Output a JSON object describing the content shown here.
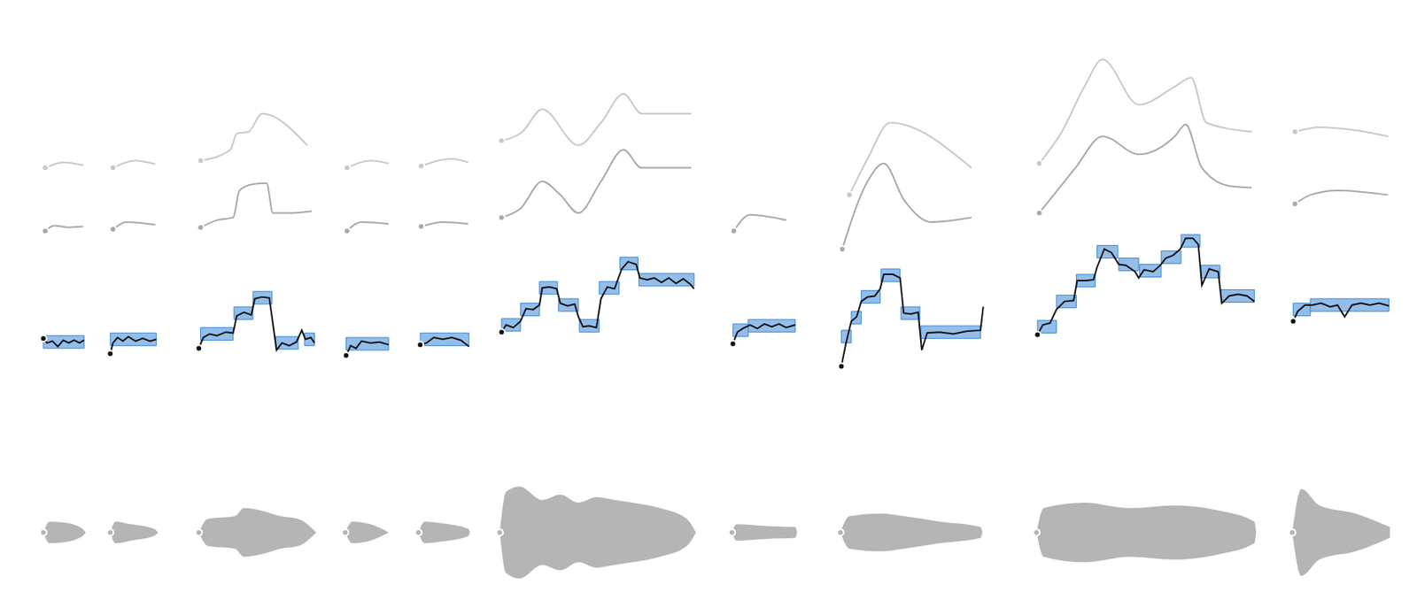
{
  "chart_data": {
    "type": "spectrogram",
    "tick_labels": false,
    "xlim": [
      0,
      1568
    ],
    "ylim": [
      0,
      656
    ],
    "y2lim": [
      -66,
      590
    ],
    "notes": [
      [
        48,
        93,
        277
      ],
      [
        122,
        173,
        280
      ],
      [
        222,
        258,
        286
      ],
      [
        259,
        280,
        309
      ],
      [
        280,
        301,
        326
      ],
      [
        305,
        330,
        276
      ],
      [
        337,
        348,
        280
      ],
      [
        383,
        430,
        275
      ],
      [
        465,
        519,
        280
      ],
      [
        555,
        576,
        296
      ],
      [
        576,
        597,
        313
      ],
      [
        597,
        617,
        337
      ],
      [
        618,
        640,
        318
      ],
      [
        641,
        663,
        295
      ],
      [
        663,
        685,
        337
      ],
      [
        686,
        706,
        364
      ],
      [
        707,
        768,
        346
      ],
      [
        811,
        828,
        290
      ],
      [
        828,
        880,
        295
      ],
      [
        931,
        942,
        283
      ],
      [
        942,
        953,
        304
      ],
      [
        953,
        974,
        327
      ],
      [
        975,
        996,
        351
      ],
      [
        997,
        1018,
        309
      ],
      [
        1019,
        1085,
        288
      ],
      [
        1148,
        1169,
        294
      ],
      [
        1169,
        1191,
        322
      ],
      [
        1191,
        1212,
        345
      ],
      [
        1214,
        1237,
        377
      ],
      [
        1238,
        1260,
        363
      ],
      [
        1261,
        1285,
        356
      ],
      [
        1285,
        1307,
        371
      ],
      [
        1307,
        1328,
        389
      ],
      [
        1329,
        1350,
        355
      ],
      [
        1351,
        1388,
        328
      ],
      [
        1431,
        1450,
        313
      ],
      [
        1450,
        1537,
        318
      ]
    ],
    "pitch_track": [
      [
        [
          48,
          281
        ],
        [
          52,
          276
        ],
        [
          58,
          278
        ],
        [
          64,
          272
        ],
        [
          70,
          279
        ],
        [
          76,
          276
        ],
        [
          82,
          279
        ],
        [
          88,
          276
        ],
        [
          93,
          279
        ]
      ],
      [
        [
          122,
          264
        ],
        [
          125,
          276
        ],
        [
          130,
          282
        ],
        [
          136,
          278
        ],
        [
          142,
          283
        ],
        [
          150,
          278
        ],
        [
          158,
          281
        ],
        [
          166,
          278
        ],
        [
          173,
          280
        ]
      ],
      [
        [
          220,
          270
        ],
        [
          225,
          282
        ],
        [
          232,
          286
        ],
        [
          240,
          284
        ],
        [
          250,
          288
        ],
        [
          258,
          287
        ],
        [
          262,
          306
        ],
        [
          270,
          310
        ],
        [
          278,
          307
        ],
        [
          282,
          325
        ],
        [
          290,
          327
        ],
        [
          298,
          326
        ],
        [
          303,
          290
        ],
        [
          306,
          268
        ],
        [
          312,
          276
        ],
        [
          320,
          273
        ],
        [
          328,
          277
        ],
        [
          334,
          290
        ],
        [
          338,
          280
        ],
        [
          344,
          282
        ],
        [
          348,
          276
        ]
      ],
      [
        [
          383,
          262
        ],
        [
          388,
          273
        ],
        [
          394,
          270
        ],
        [
          400,
          278
        ],
        [
          410,
          276
        ],
        [
          420,
          277
        ],
        [
          430,
          274
        ]
      ],
      [
        [
          465,
          274
        ],
        [
          472,
          276
        ],
        [
          480,
          282
        ],
        [
          490,
          280
        ],
        [
          500,
          282
        ],
        [
          510,
          279
        ],
        [
          519,
          272
        ]
      ],
      [
        [
          555,
          288
        ],
        [
          560,
          296
        ],
        [
          568,
          293
        ],
        [
          576,
          300
        ],
        [
          582,
          314
        ],
        [
          590,
          313
        ],
        [
          597,
          318
        ],
        [
          600,
          337
        ],
        [
          608,
          338
        ],
        [
          616,
          336
        ],
        [
          620,
          320
        ],
        [
          628,
          317
        ],
        [
          636,
          319
        ],
        [
          640,
          305
        ],
        [
          645,
          294
        ],
        [
          652,
          295
        ],
        [
          660,
          293
        ],
        [
          665,
          325
        ],
        [
          672,
          338
        ],
        [
          680,
          336
        ],
        [
          688,
          358
        ],
        [
          695,
          366
        ],
        [
          704,
          363
        ],
        [
          708,
          348
        ],
        [
          716,
          346
        ],
        [
          724,
          348
        ],
        [
          732,
          343
        ],
        [
          740,
          348
        ],
        [
          748,
          342
        ],
        [
          756,
          347
        ],
        [
          764,
          341
        ],
        [
          768,
          336
        ]
      ],
      [
        [
          811,
          275
        ],
        [
          816,
          288
        ],
        [
          822,
          292
        ],
        [
          830,
          296
        ],
        [
          838,
          292
        ],
        [
          846,
          297
        ],
        [
          854,
          294
        ],
        [
          862,
          297
        ],
        [
          870,
          293
        ],
        [
          880,
          296
        ]
      ],
      [
        [
          931,
          250
        ],
        [
          936,
          275
        ],
        [
          942,
          300
        ],
        [
          948,
          305
        ],
        [
          953,
          322
        ],
        [
          960,
          327
        ],
        [
          968,
          328
        ],
        [
          974,
          336
        ],
        [
          978,
          352
        ],
        [
          988,
          352
        ],
        [
          996,
          348
        ],
        [
          1000,
          309
        ],
        [
          1008,
          308
        ],
        [
          1016,
          310
        ],
        [
          1020,
          268
        ],
        [
          1026,
          287
        ],
        [
          1040,
          288
        ],
        [
          1055,
          286
        ],
        [
          1070,
          289
        ],
        [
          1085,
          290
        ],
        [
          1088,
          316
        ]
      ],
      [
        [
          1148,
          285
        ],
        [
          1154,
          296
        ],
        [
          1162,
          298
        ],
        [
          1169,
          313
        ],
        [
          1178,
          322
        ],
        [
          1188,
          323
        ],
        [
          1192,
          345
        ],
        [
          1202,
          345
        ],
        [
          1210,
          346
        ],
        [
          1214,
          360
        ],
        [
          1222,
          380
        ],
        [
          1230,
          376
        ],
        [
          1238,
          363
        ],
        [
          1246,
          362
        ],
        [
          1256,
          355
        ],
        [
          1260,
          348
        ],
        [
          1266,
          357
        ],
        [
          1276,
          355
        ],
        [
          1284,
          362
        ],
        [
          1290,
          370
        ],
        [
          1298,
          373
        ],
        [
          1306,
          380
        ],
        [
          1312,
          392
        ],
        [
          1320,
          392
        ],
        [
          1326,
          385
        ],
        [
          1330,
          340
        ],
        [
          1338,
          358
        ],
        [
          1348,
          355
        ],
        [
          1352,
          320
        ],
        [
          1360,
          328
        ],
        [
          1370,
          330
        ],
        [
          1380,
          328
        ],
        [
          1388,
          322
        ]
      ],
      [
        [
          1431,
          300
        ],
        [
          1436,
          311
        ],
        [
          1444,
          318
        ],
        [
          1452,
          318
        ],
        [
          1462,
          320
        ],
        [
          1472,
          316
        ],
        [
          1480,
          318
        ],
        [
          1488,
          305
        ],
        [
          1496,
          318
        ],
        [
          1506,
          320
        ],
        [
          1516,
          318
        ],
        [
          1526,
          320
        ],
        [
          1537,
          317
        ]
      ]
    ],
    "harmonic_2_track": [
      [
        [
          50,
          400
        ],
        [
          60,
          406
        ],
        [
          75,
          404
        ],
        [
          92,
          405
        ]
      ],
      [
        [
          125,
          402
        ],
        [
          140,
          410
        ],
        [
          172,
          407
        ]
      ],
      [
        [
          222,
          404
        ],
        [
          240,
          412
        ],
        [
          258,
          415
        ],
        [
          265,
          445
        ],
        [
          280,
          452
        ],
        [
          295,
          453
        ],
        [
          302,
          420
        ],
        [
          320,
          420
        ],
        [
          345,
          422
        ]
      ],
      [
        [
          384,
          400
        ],
        [
          400,
          410
        ],
        [
          430,
          408
        ]
      ],
      [
        [
          466,
          405
        ],
        [
          490,
          410
        ],
        [
          518,
          408
        ]
      ],
      [
        [
          555,
          415
        ],
        [
          576,
          425
        ],
        [
          600,
          455
        ],
        [
          620,
          440
        ],
        [
          640,
          420
        ],
        [
          665,
          455
        ],
        [
          690,
          490
        ],
        [
          710,
          470
        ],
        [
          765,
          470
        ]
      ],
      [
        [
          812,
          400
        ],
        [
          830,
          418
        ],
        [
          870,
          412
        ]
      ],
      [
        [
          932,
          380
        ],
        [
          960,
          455
        ],
        [
          978,
          475
        ],
        [
          1000,
          435
        ],
        [
          1030,
          410
        ],
        [
          1075,
          415
        ]
      ],
      [
        [
          1150,
          420
        ],
        [
          1170,
          445
        ],
        [
          1190,
          470
        ],
        [
          1220,
          505
        ],
        [
          1260,
          485
        ],
        [
          1300,
          505
        ],
        [
          1312,
          518
        ],
        [
          1330,
          470
        ],
        [
          1360,
          450
        ],
        [
          1385,
          448
        ]
      ],
      [
        [
          1433,
          430
        ],
        [
          1450,
          440
        ],
        [
          1480,
          445
        ],
        [
          1536,
          440
        ]
      ]
    ],
    "harmonic_3_track": [
      [
        [
          50,
          470
        ],
        [
          70,
          476
        ],
        [
          92,
          473
        ]
      ],
      [
        [
          125,
          470
        ],
        [
          150,
          478
        ],
        [
          172,
          474
        ]
      ],
      [
        [
          222,
          478
        ],
        [
          255,
          490
        ],
        [
          262,
          508
        ],
        [
          275,
          510
        ],
        [
          290,
          530
        ],
        [
          340,
          495
        ]
      ],
      [
        [
          384,
          470
        ],
        [
          410,
          478
        ],
        [
          430,
          475
        ]
      ],
      [
        [
          466,
          472
        ],
        [
          500,
          480
        ],
        [
          518,
          476
        ]
      ],
      [
        [
          555,
          500
        ],
        [
          578,
          510
        ],
        [
          600,
          535
        ],
        [
          640,
          495
        ],
        [
          665,
          520
        ],
        [
          690,
          552
        ],
        [
          710,
          530
        ],
        [
          765,
          530
        ]
      ],
      [
        [
          940,
          440
        ],
        [
          960,
          480
        ],
        [
          985,
          520
        ],
        [
          1075,
          470
        ]
      ],
      [
        [
          1150,
          475
        ],
        [
          1175,
          510
        ],
        [
          1200,
          560
        ],
        [
          1220,
          590
        ],
        [
          1260,
          540
        ],
        [
          1300,
          560
        ],
        [
          1318,
          570
        ],
        [
          1335,
          520
        ],
        [
          1385,
          510
        ]
      ],
      [
        [
          1433,
          510
        ],
        [
          1460,
          515
        ],
        [
          1536,
          505
        ]
      ]
    ],
    "waveform": [
      [
        [
          48,
          0
        ],
        [
          55,
          12
        ],
        [
          70,
          11
        ],
        [
          90,
          5
        ],
        [
          95,
          0
        ]
      ],
      [
        [
          122,
          0
        ],
        [
          128,
          12
        ],
        [
          145,
          9
        ],
        [
          170,
          4
        ],
        [
          175,
          0
        ]
      ],
      [
        [
          220,
          0
        ],
        [
          230,
          15
        ],
        [
          260,
          18
        ],
        [
          270,
          27
        ],
        [
          290,
          24
        ],
        [
          310,
          18
        ],
        [
          330,
          15
        ],
        [
          350,
          0
        ]
      ],
      [
        [
          382,
          0
        ],
        [
          390,
          12
        ],
        [
          410,
          9
        ],
        [
          430,
          0
        ]
      ],
      [
        [
          463,
          0
        ],
        [
          470,
          12
        ],
        [
          490,
          10
        ],
        [
          518,
          4
        ],
        [
          520,
          0
        ]
      ],
      [
        [
          553,
          0
        ],
        [
          560,
          45
        ],
        [
          575,
          51
        ],
        [
          600,
          36
        ],
        [
          620,
          42
        ],
        [
          640,
          33
        ],
        [
          660,
          39
        ],
        [
          680,
          36
        ],
        [
          700,
          33
        ],
        [
          730,
          27
        ],
        [
          760,
          15
        ],
        [
          770,
          0
        ]
      ],
      [
        [
          810,
          0
        ],
        [
          815,
          9
        ],
        [
          850,
          7
        ],
        [
          880,
          6
        ],
        [
          882,
          0
        ]
      ],
      [
        [
          930,
          0
        ],
        [
          940,
          18
        ],
        [
          975,
          21
        ],
        [
          1000,
          18
        ],
        [
          1040,
          12
        ],
        [
          1085,
          6
        ],
        [
          1087,
          0
        ]
      ],
      [
        [
          1147,
          0
        ],
        [
          1155,
          27
        ],
        [
          1200,
          33
        ],
        [
          1250,
          27
        ],
        [
          1300,
          30
        ],
        [
          1350,
          24
        ],
        [
          1388,
          12
        ],
        [
          1390,
          0
        ]
      ],
      [
        [
          1430,
          0
        ],
        [
          1440,
          48
        ],
        [
          1460,
          30
        ],
        [
          1500,
          21
        ],
        [
          1538,
          6
        ]
      ]
    ]
  }
}
